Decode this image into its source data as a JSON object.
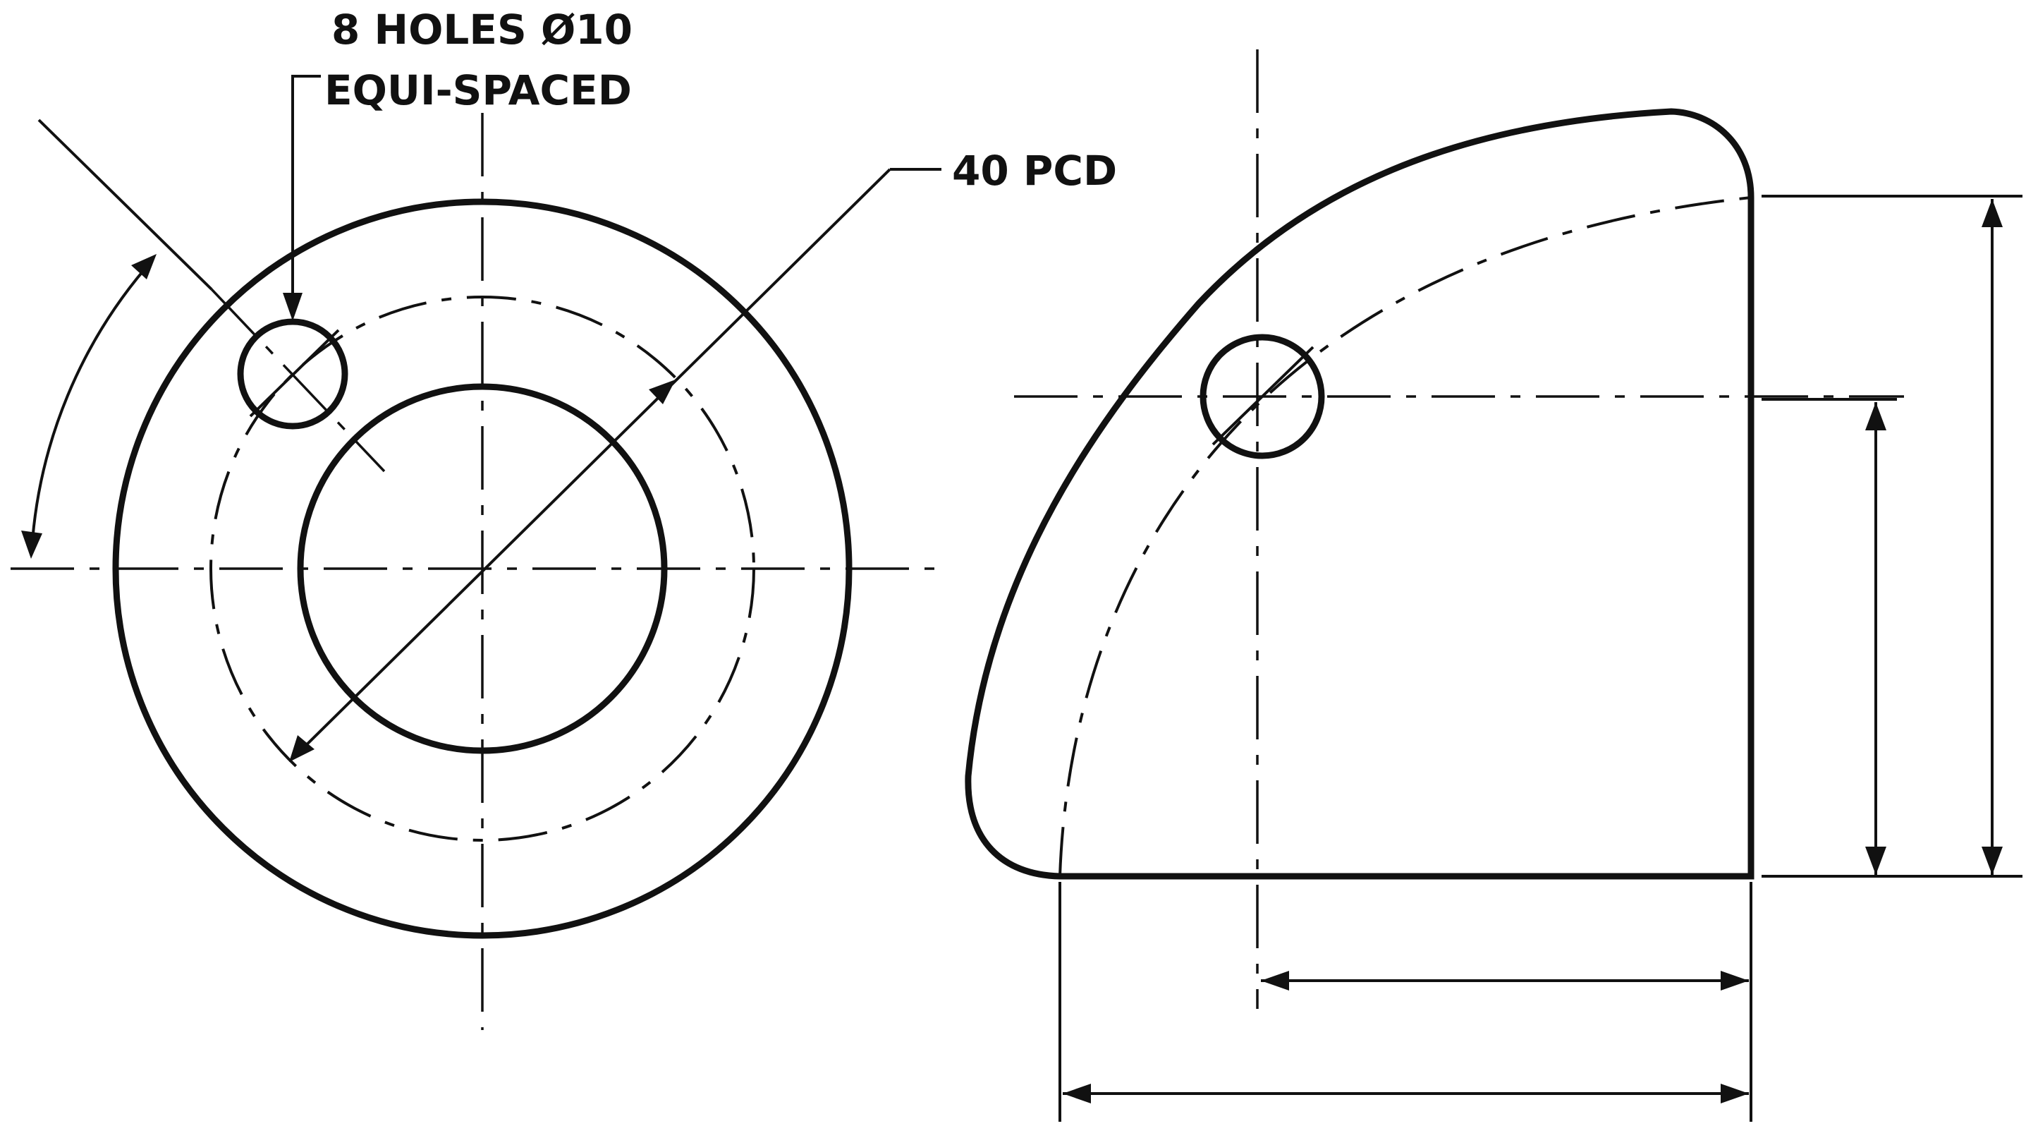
{
  "annotations": {
    "holes_line1": "8 HOLES Ø10",
    "holes_line2": "EQUI-SPACED",
    "pcd": "40 PCD"
  },
  "views": {
    "front": {
      "holes": 8,
      "hole_diameter": 10,
      "pcd": 40
    },
    "side": {}
  },
  "colors": {
    "line": "#111111",
    "background": "#ffffff"
  }
}
